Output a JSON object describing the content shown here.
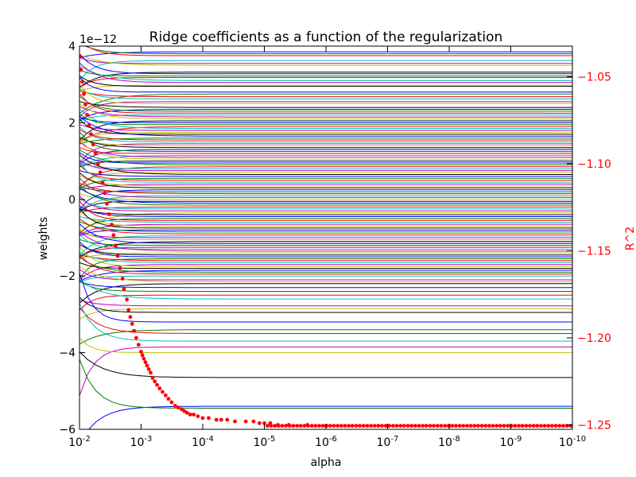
{
  "chart_data": {
    "type": "line",
    "title": "Ridge coefficients as a function of the regularization",
    "xlabel": "alpha",
    "ylabel": "weights",
    "y2label": "R^2",
    "y_offset_label": "1e−12",
    "x_scale": "log",
    "x_direction": "decreasing",
    "xlim": [
      0.01,
      1e-10
    ],
    "ylim": [
      -6e-12,
      4e-12
    ],
    "y2lim": [
      -1.2525,
      -1.0325
    ],
    "x_ticks": [
      {
        "value": 0.01,
        "base": "10",
        "exp": "-2"
      },
      {
        "value": 0.001,
        "base": "10",
        "exp": "-3"
      },
      {
        "value": 0.0001,
        "base": "10",
        "exp": "-4"
      },
      {
        "value": 1e-05,
        "base": "10",
        "exp": "-5"
      },
      {
        "value": 1e-06,
        "base": "10",
        "exp": "-6"
      },
      {
        "value": 1e-07,
        "base": "10",
        "exp": "-7"
      },
      {
        "value": 1e-08,
        "base": "10",
        "exp": "-8"
      },
      {
        "value": 1e-09,
        "base": "10",
        "exp": "-9"
      },
      {
        "value": 1e-10,
        "base": "10",
        "exp": "-10"
      }
    ],
    "y_ticks": [
      {
        "value": 4,
        "label": "4"
      },
      {
        "value": 2,
        "label": "2"
      },
      {
        "value": 0,
        "label": "0"
      },
      {
        "value": -2,
        "label": "−2"
      },
      {
        "value": -4,
        "label": "−4"
      },
      {
        "value": -6,
        "label": "−6"
      }
    ],
    "y2_ticks": [
      {
        "value": -1.05,
        "label": "−1.05"
      },
      {
        "value": -1.1,
        "label": "−1.10"
      },
      {
        "value": -1.15,
        "label": "−1.15"
      },
      {
        "value": -1.2,
        "label": "−1.20"
      },
      {
        "value": -1.25,
        "label": "−1.25"
      }
    ],
    "coef_color_cycle": [
      "#0000ff",
      "#008000",
      "#ff0000",
      "#00bfbf",
      "#bf00bf",
      "#bfbf00",
      "#000000"
    ],
    "r2_color": "#ff0000",
    "coef_series_plateaus_e12": [
      3.85,
      3.8,
      3.75,
      3.62,
      3.55,
      3.5,
      3.32,
      3.28,
      3.22,
      3.18,
      3.1,
      3.05,
      2.98,
      2.95,
      2.8,
      2.75,
      2.68,
      2.62,
      2.55,
      2.5,
      2.4,
      2.35,
      2.3,
      2.25,
      2.2,
      2.15,
      2.1,
      2.05,
      2.0,
      1.95,
      1.9,
      1.85,
      1.8,
      1.75,
      1.7,
      1.65,
      1.6,
      1.55,
      1.5,
      1.45,
      1.4,
      1.35,
      1.3,
      1.25,
      1.2,
      1.15,
      1.1,
      1.05,
      1.0,
      0.95,
      0.9,
      0.85,
      0.8,
      0.75,
      0.7,
      0.65,
      0.6,
      0.55,
      0.5,
      0.45,
      0.4,
      0.35,
      0.3,
      0.25,
      0.2,
      0.15,
      0.1,
      0.05,
      0.0,
      -0.05,
      -0.1,
      -0.15,
      -0.2,
      -0.25,
      -0.3,
      -0.35,
      -0.4,
      -0.45,
      -0.5,
      -0.55,
      -0.6,
      -0.65,
      -0.7,
      -0.75,
      -0.8,
      -0.85,
      -0.9,
      -0.95,
      -1.0,
      -1.05,
      -1.1,
      -1.15,
      -1.2,
      -1.25,
      -1.3,
      -1.35,
      -1.4,
      -1.45,
      -1.5,
      -1.55,
      -1.6,
      -1.65,
      -1.7,
      -1.75,
      -1.8,
      -1.85,
      -1.9,
      -1.95,
      -2.0,
      -2.1,
      -2.15,
      -2.2,
      -2.3,
      -2.4,
      -2.5,
      -2.6,
      -2.78,
      -2.85,
      -2.95,
      -3.2,
      -3.4,
      -3.5,
      -3.7,
      -3.85,
      -4.0,
      -4.65,
      -5.4,
      -5.45
    ],
    "r2_points": [
      [
        0.01,
        -1.038
      ],
      [
        0.0095,
        -1.046
      ],
      [
        0.009,
        -1.053
      ],
      [
        0.0085,
        -1.06
      ],
      [
        0.008,
        -1.066
      ],
      [
        0.0075,
        -1.072
      ],
      [
        0.007,
        -1.078
      ],
      [
        0.0065,
        -1.083
      ],
      [
        0.006,
        -1.089
      ],
      [
        0.0055,
        -1.094
      ],
      [
        0.005,
        -1.1
      ],
      [
        0.0046,
        -1.105
      ],
      [
        0.0042,
        -1.111
      ],
      [
        0.0039,
        -1.117
      ],
      [
        0.0036,
        -1.123
      ],
      [
        0.0033,
        -1.129
      ],
      [
        0.003,
        -1.135
      ],
      [
        0.0028,
        -1.141
      ],
      [
        0.0026,
        -1.147
      ],
      [
        0.0024,
        -1.153
      ],
      [
        0.0022,
        -1.16
      ],
      [
        0.002,
        -1.166
      ],
      [
        0.0019,
        -1.172
      ],
      [
        0.0017,
        -1.178
      ],
      [
        0.0016,
        -1.184
      ],
      [
        0.0015,
        -1.188
      ],
      [
        0.0014,
        -1.192
      ],
      [
        0.0013,
        -1.196
      ],
      [
        0.0012,
        -1.2
      ],
      [
        0.0011,
        -1.204
      ],
      [
        0.001,
        -1.208
      ],
      [
        0.00095,
        -1.21
      ],
      [
        0.0009,
        -1.212
      ],
      [
        0.00085,
        -1.214
      ],
      [
        0.0008,
        -1.216
      ],
      [
        0.00075,
        -1.218
      ],
      [
        0.0007,
        -1.22
      ],
      [
        0.00065,
        -1.223
      ],
      [
        0.0006,
        -1.225
      ],
      [
        0.00055,
        -1.227
      ],
      [
        0.0005,
        -1.229
      ],
      [
        0.00045,
        -1.231
      ],
      [
        0.0004,
        -1.233
      ],
      [
        0.00036,
        -1.235
      ],
      [
        0.00032,
        -1.237
      ],
      [
        0.00028,
        -1.239
      ],
      [
        0.00025,
        -1.24
      ],
      [
        0.00022,
        -1.241
      ],
      [
        0.0002,
        -1.242
      ],
      [
        0.00018,
        -1.243
      ],
      [
        0.00016,
        -1.244
      ],
      [
        0.00014,
        -1.244
      ],
      [
        0.00012,
        -1.245
      ],
      [
        0.0001,
        -1.246
      ],
      [
        8e-05,
        -1.246
      ],
      [
        6e-05,
        -1.247
      ],
      [
        5e-05,
        -1.247
      ],
      [
        4e-05,
        -1.247
      ],
      [
        3e-05,
        -1.248
      ],
      [
        2e-05,
        -1.248
      ],
      [
        1.5e-05,
        -1.248
      ],
      [
        1.2e-05,
        -1.249
      ],
      [
        1e-05,
        -1.249
      ],
      [
        8e-06,
        -1.249
      ],
      [
        6e-06,
        -1.25
      ],
      [
        4e-06,
        -1.25
      ],
      [
        2e-06,
        -1.25
      ],
      [
        1e-06,
        -1.2505
      ],
      [
        1e-07,
        -1.2505
      ],
      [
        1e-08,
        -1.2505
      ],
      [
        1e-09,
        -1.2505
      ],
      [
        1e-10,
        -1.2505
      ]
    ]
  }
}
